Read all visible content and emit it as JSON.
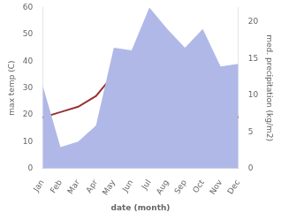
{
  "chart_data": {
    "type": "line",
    "categories": [
      "Jan",
      "Feb",
      "Mar",
      "Apr",
      "May",
      "Jun",
      "Jul",
      "Aug",
      "Sep",
      "Oct",
      "Nov",
      "Dec"
    ],
    "series": [
      {
        "type": "area",
        "color": "#b0b8e8",
        "values": [
          31,
          8,
          10,
          16,
          45,
          44,
          60,
          52,
          45,
          52,
          38,
          39
        ]
      },
      {
        "type": "line",
        "color": "#993333",
        "values": [
          19,
          21,
          23,
          27,
          35,
          42,
          43,
          41,
          35,
          27,
          22,
          19
        ]
      }
    ],
    "xlabel": "date (month)",
    "ylabel": "max temp (C)",
    "y2label": "med. precipitation (kg/m2)",
    "ylim": [
      0,
      60
    ],
    "yticks": [
      0,
      10,
      20,
      30,
      40,
      50,
      60
    ],
    "y2lim": [
      0,
      22
    ],
    "y2ticks": [
      0,
      5,
      10,
      15,
      20
    ],
    "grid": false
  }
}
